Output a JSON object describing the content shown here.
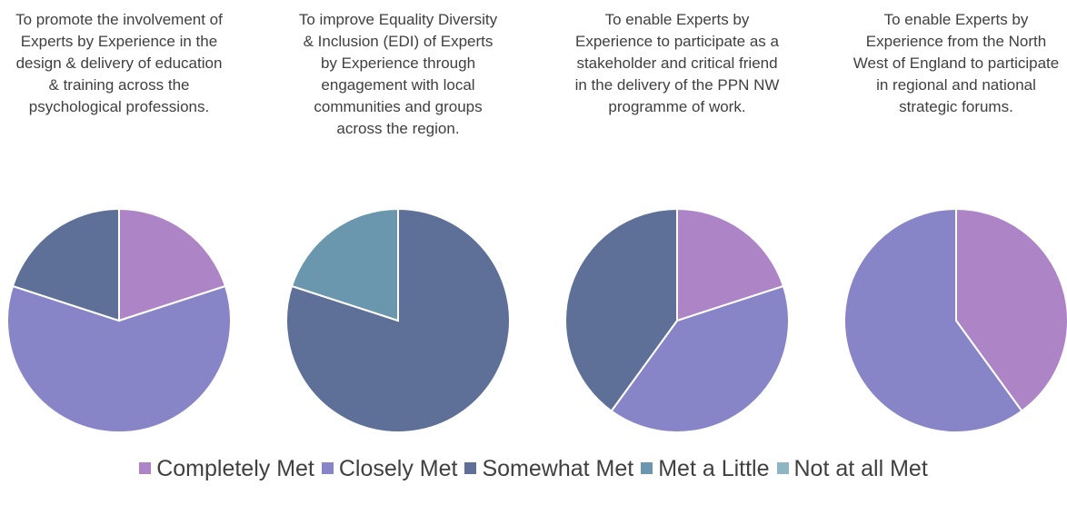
{
  "chart_data": [
    {
      "type": "pie",
      "title": "To promote the involvement of Experts by Experience in the design & delivery of education & training across the psychological professions.",
      "categories": [
        "Completely Met",
        "Closely Met",
        "Somewhat Met",
        "Met a Little",
        "Not at all Met"
      ],
      "colors": [
        "#ad84c6",
        "#8784c7",
        "#5e7097",
        "#6a97ae",
        "#8fb4c2"
      ],
      "values": [
        20,
        60,
        20,
        0,
        0
      ]
    },
    {
      "type": "pie",
      "title": "To improve Equality Diversity & Inclusion (EDI) of Experts by Experience through engagement with local communities and groups across the region.",
      "categories": [
        "Completely Met",
        "Closely Met",
        "Somewhat Met",
        "Met a Little",
        "Not at all Met"
      ],
      "colors": [
        "#ad84c6",
        "#8784c7",
        "#5e7097",
        "#6a97ae",
        "#8fb4c2"
      ],
      "values": [
        0,
        0,
        80,
        20,
        0
      ]
    },
    {
      "type": "pie",
      "title": "To enable Experts by Experience to participate as a stakeholder and critical friend in the delivery of the PPN NW programme of work.",
      "categories": [
        "Completely Met",
        "Closely Met",
        "Somewhat Met",
        "Met a Little",
        "Not at all Met"
      ],
      "colors": [
        "#ad84c6",
        "#8784c7",
        "#5e7097",
        "#6a97ae",
        "#8fb4c2"
      ],
      "values": [
        20,
        40,
        40,
        0,
        0
      ]
    },
    {
      "type": "pie",
      "title": "To enable Experts by Experience from the North West of England to participate in regional and national strategic forums.",
      "categories": [
        "Completely Met",
        "Closely Met",
        "Somewhat Met",
        "Met a Little",
        "Not at all Met"
      ],
      "colors": [
        "#ad84c6",
        "#8784c7",
        "#5e7097",
        "#6a97ae",
        "#8fb4c2"
      ],
      "values": [
        40,
        60,
        0,
        0,
        0
      ]
    }
  ]
}
